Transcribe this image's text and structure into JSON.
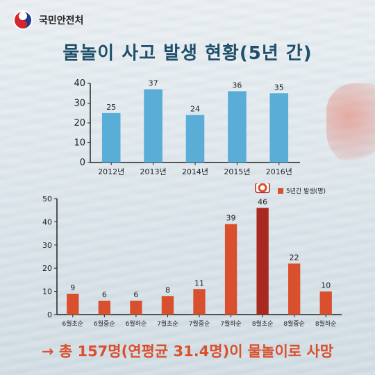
{
  "header": {
    "org_name": "국민안전처",
    "logo_icon": "taegeuk-logo-icon"
  },
  "title": "물놀이 사고 발생 현황(5년 간)",
  "footer_text": "→ 총 157명(연평균 31.4명)이 물놀이로 사망",
  "colors": {
    "bar_blue": "#5aadd6",
    "bar_orange": "#d9502e",
    "bar_highlight": "#a8291f",
    "title": "#1f4f6b"
  },
  "chart_data": [
    {
      "type": "bar",
      "title": "",
      "xlabel": "",
      "ylabel": "",
      "categories": [
        "2012년",
        "2013년",
        "2014년",
        "2015년",
        "2016년"
      ],
      "values": [
        25,
        37,
        24,
        36,
        35
      ],
      "ylim": [
        0,
        40
      ],
      "yticks": [
        0,
        10,
        20,
        30,
        40
      ],
      "grid": false,
      "data_labels": true
    },
    {
      "type": "bar",
      "title": "",
      "xlabel": "",
      "ylabel": "",
      "categories": [
        "6월초순",
        "6월중순",
        "6월하순",
        "7월초순",
        "7월중순",
        "7월하순",
        "8월초순",
        "8월중순",
        "8월하순"
      ],
      "series": [
        {
          "name": "5년간 발생(명)",
          "values": [
            9,
            6,
            6,
            8,
            11,
            39,
            46,
            22,
            10
          ]
        }
      ],
      "highlight_index": 6,
      "highlight_icon": "lifebuoy-icon",
      "ylim": [
        0,
        50
      ],
      "yticks": [
        0,
        10,
        20,
        30,
        40,
        50
      ],
      "grid": false,
      "legend_position": "top-right",
      "data_labels": true
    }
  ]
}
